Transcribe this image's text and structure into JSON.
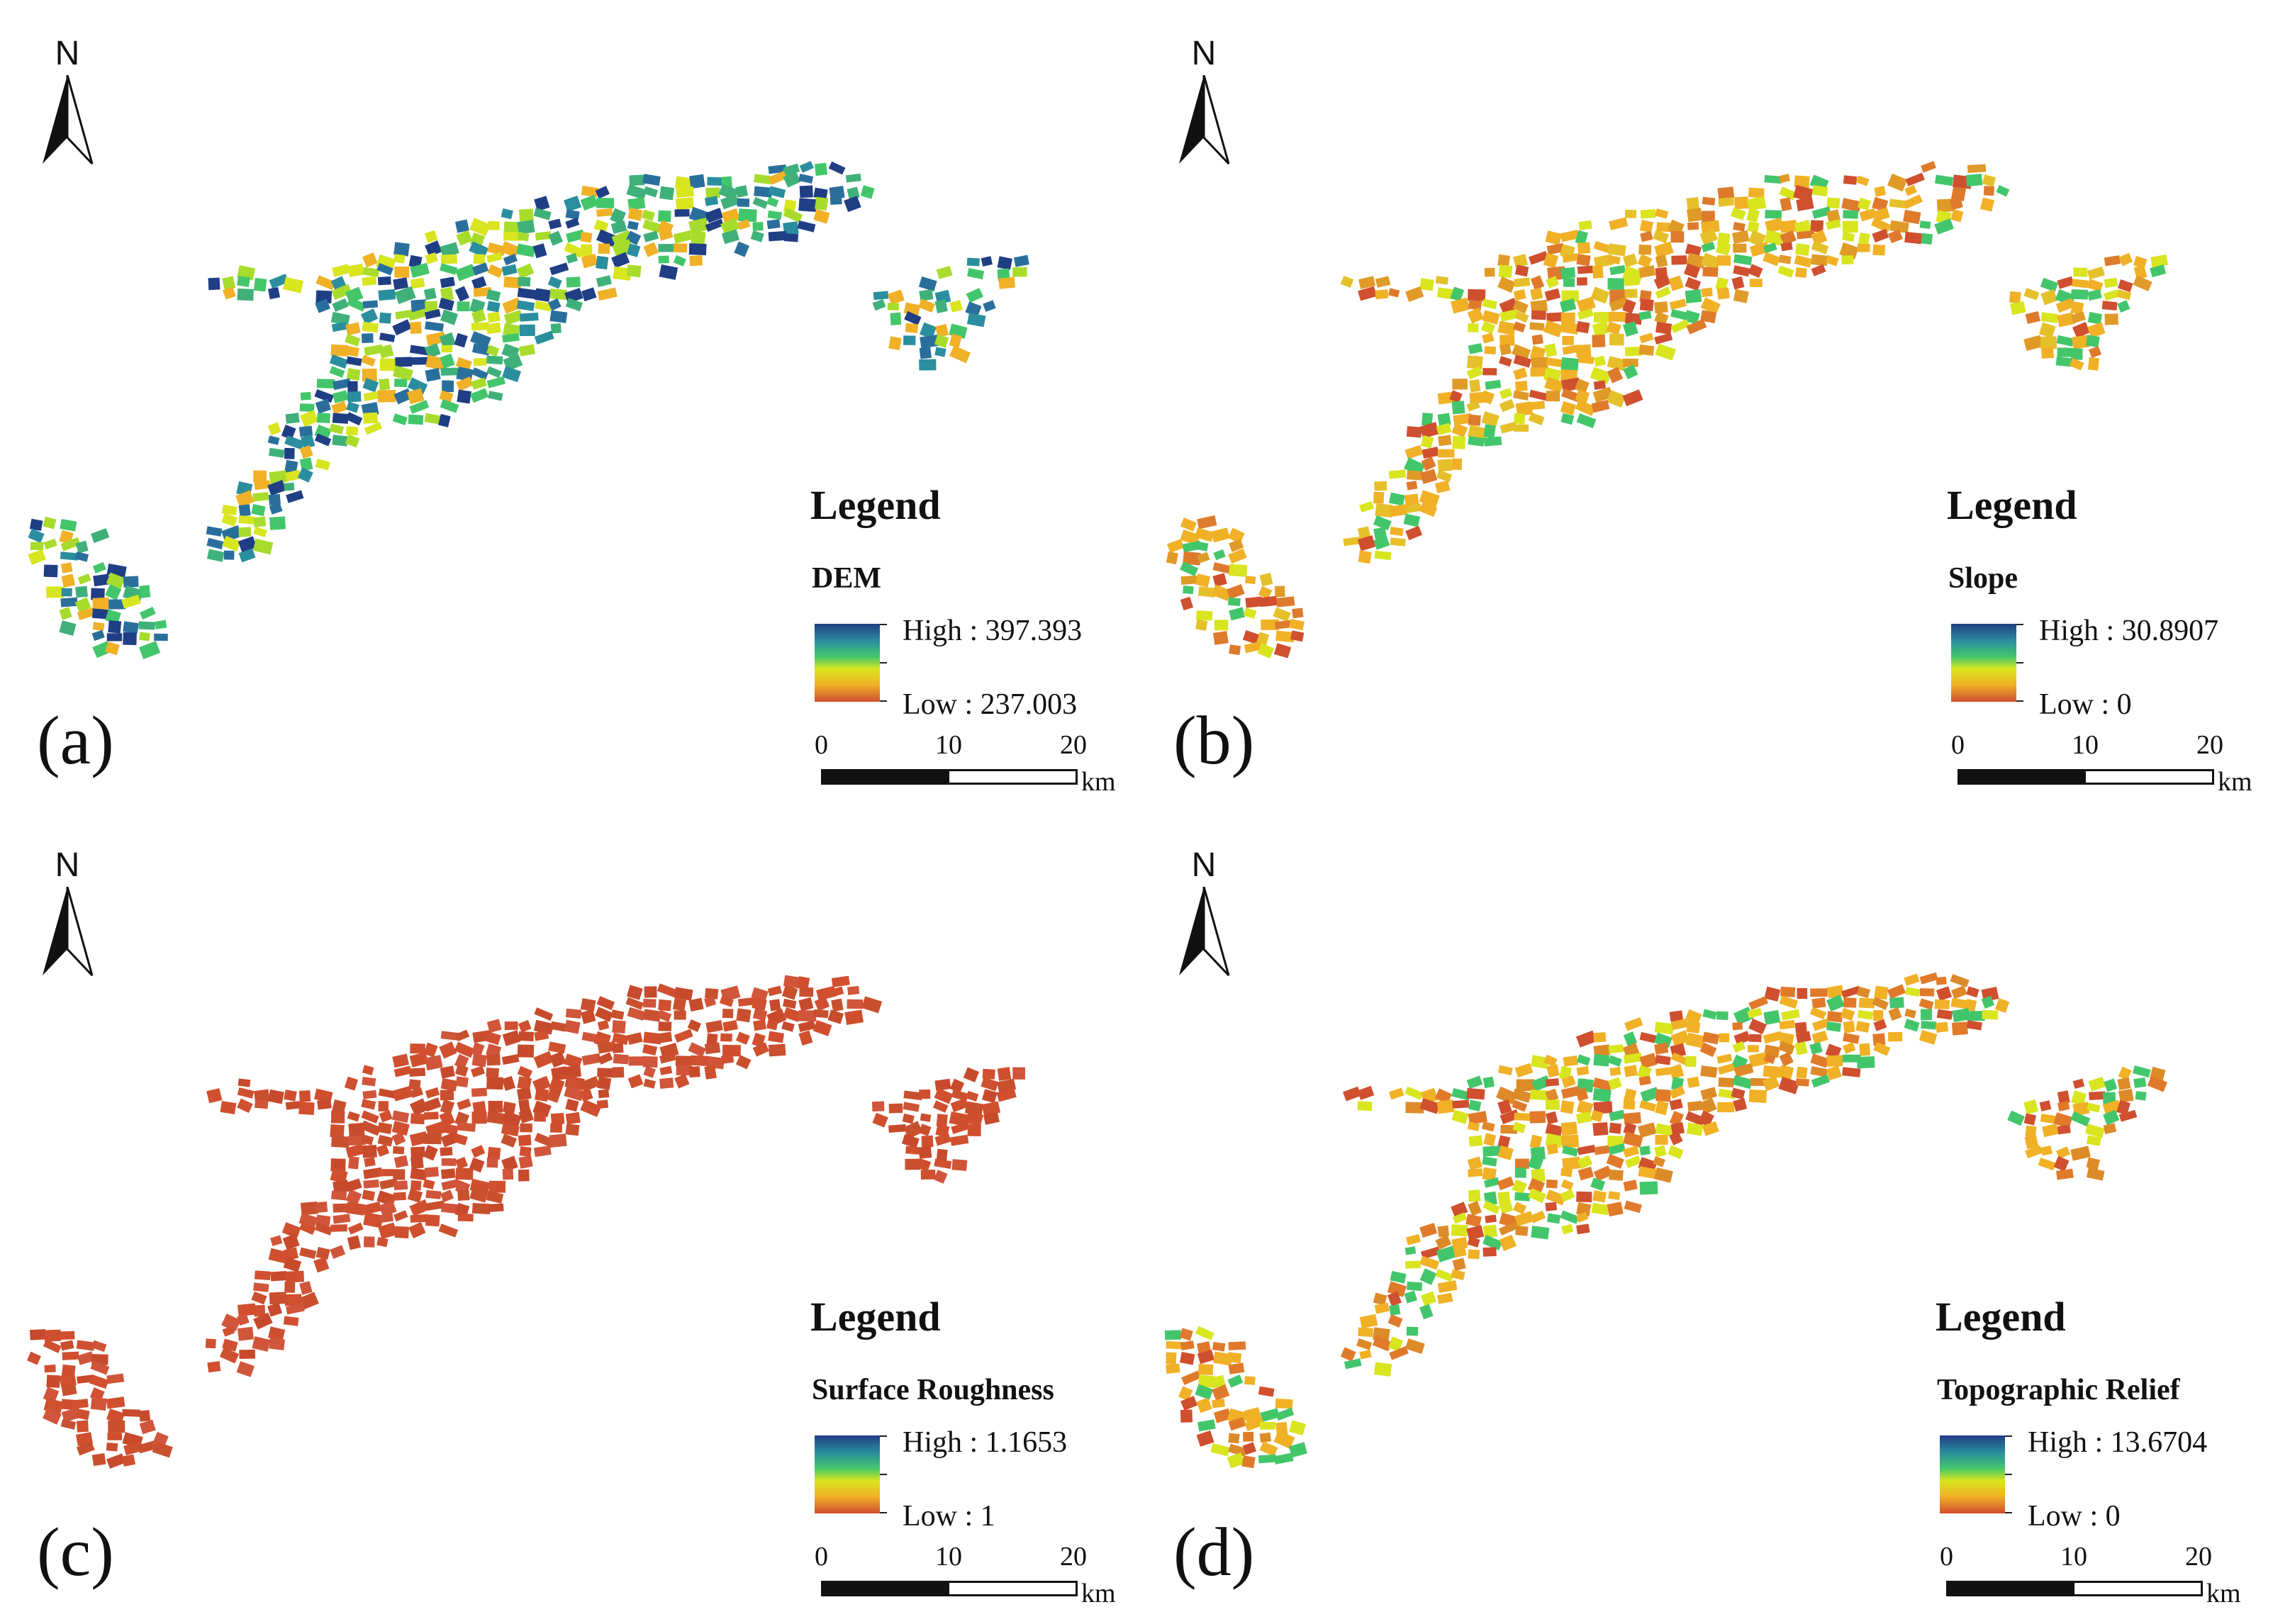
{
  "figure": {
    "panels": [
      {
        "label": "(a)",
        "north_label": "N",
        "legend_title": "Legend",
        "layer_name": "DEM",
        "high_label": "High : 397.393",
        "low_label": "Low : 237.003",
        "scale": {
          "ticks": [
            "0",
            "10",
            "20"
          ],
          "unit": "km"
        },
        "palette": "dem"
      },
      {
        "label": "(b)",
        "north_label": "N",
        "legend_title": "Legend",
        "layer_name": "Slope",
        "high_label": "High : 30.8907",
        "low_label": "Low : 0",
        "scale": {
          "ticks": [
            "0",
            "10",
            "20"
          ],
          "unit": "km"
        },
        "palette": "slope"
      },
      {
        "label": "(c)",
        "north_label": "N",
        "legend_title": "Legend",
        "layer_name": "Surface Roughness",
        "high_label": "High : 1.1653",
        "low_label": "Low : 1",
        "scale": {
          "ticks": [
            "0",
            "10",
            "20"
          ],
          "unit": "km"
        },
        "palette": "roughness"
      },
      {
        "label": "(d)",
        "north_label": "N",
        "legend_title": "Legend",
        "layer_name": "Topographic Relief",
        "high_label": "High : 13.6704",
        "low_label": "Low : 0",
        "scale": {
          "ticks": [
            "0",
            "10",
            "20"
          ],
          "unit": "km"
        },
        "palette": "relief"
      }
    ],
    "colors": {
      "ramp_high": "#1f3e84",
      "ramp_mid_high": "#2a8e9e",
      "ramp_mid": "#43c66b",
      "ramp_mid_low": "#d8e51f",
      "ramp_low_mid": "#f0b126",
      "ramp_low": "#cf4f2f"
    }
  }
}
